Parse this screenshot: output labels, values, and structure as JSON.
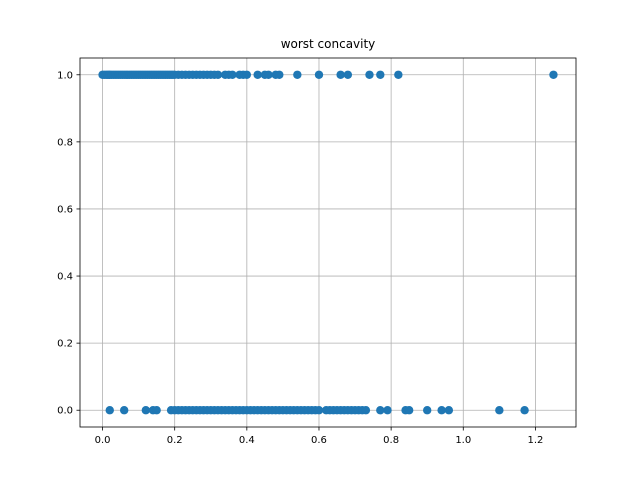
{
  "chart_data": {
    "type": "scatter",
    "title": "worst concavity",
    "xlabel": "",
    "ylabel": "",
    "xlim": [
      -0.0625,
      1.3125
    ],
    "ylim": [
      -0.05,
      1.05
    ],
    "xticks": [
      0.0,
      0.2,
      0.4,
      0.6,
      0.8,
      1.0,
      1.2
    ],
    "xtick_labels": [
      "0.0",
      "0.2",
      "0.4",
      "0.6",
      "0.8",
      "1.0",
      "1.2"
    ],
    "yticks": [
      0.0,
      0.2,
      0.4,
      0.6,
      0.8,
      1.0
    ],
    "ytick_labels": [
      "0.0",
      "0.2",
      "0.4",
      "0.6",
      "0.8",
      "1.0"
    ],
    "grid": true,
    "marker_color": "#1f77b4",
    "series": [
      {
        "x": [
          0.0,
          0.005,
          0.01,
          0.014,
          0.018,
          0.02,
          0.025,
          0.03,
          0.035,
          0.04,
          0.045,
          0.05,
          0.055,
          0.06,
          0.065,
          0.07,
          0.075,
          0.08,
          0.085,
          0.09,
          0.095,
          0.1,
          0.105,
          0.11,
          0.115,
          0.12,
          0.125,
          0.13,
          0.135,
          0.14,
          0.145,
          0.15,
          0.155,
          0.16,
          0.165,
          0.17,
          0.175,
          0.18,
          0.185,
          0.19,
          0.195,
          0.2,
          0.21,
          0.22,
          0.23,
          0.24,
          0.25,
          0.26,
          0.27,
          0.28,
          0.29,
          0.3,
          0.31,
          0.32,
          0.34,
          0.35,
          0.36,
          0.38,
          0.39,
          0.4,
          0.43,
          0.45,
          0.46,
          0.48,
          0.49,
          0.54,
          0.6,
          0.66,
          0.68,
          0.74,
          0.77,
          0.82,
          1.25
        ],
        "y": [
          1,
          1,
          1,
          1,
          1,
          1,
          1,
          1,
          1,
          1,
          1,
          1,
          1,
          1,
          1,
          1,
          1,
          1,
          1,
          1,
          1,
          1,
          1,
          1,
          1,
          1,
          1,
          1,
          1,
          1,
          1,
          1,
          1,
          1,
          1,
          1,
          1,
          1,
          1,
          1,
          1,
          1,
          1,
          1,
          1,
          1,
          1,
          1,
          1,
          1,
          1,
          1,
          1,
          1,
          1,
          1,
          1,
          1,
          1,
          1,
          1,
          1,
          1,
          1,
          1,
          1,
          1,
          1,
          1,
          1,
          1,
          1,
          1
        ]
      },
      {
        "x": [
          0.02,
          0.06,
          0.12,
          0.14,
          0.15,
          0.19,
          0.2,
          0.21,
          0.22,
          0.23,
          0.24,
          0.25,
          0.26,
          0.27,
          0.28,
          0.29,
          0.3,
          0.31,
          0.32,
          0.33,
          0.34,
          0.35,
          0.36,
          0.37,
          0.38,
          0.39,
          0.4,
          0.41,
          0.42,
          0.43,
          0.44,
          0.45,
          0.46,
          0.47,
          0.48,
          0.49,
          0.5,
          0.51,
          0.52,
          0.53,
          0.54,
          0.55,
          0.56,
          0.57,
          0.58,
          0.59,
          0.6,
          0.62,
          0.63,
          0.64,
          0.65,
          0.66,
          0.67,
          0.68,
          0.69,
          0.7,
          0.71,
          0.72,
          0.73,
          0.77,
          0.79,
          0.84,
          0.85,
          0.9,
          0.94,
          0.96,
          1.1,
          1.17
        ],
        "y": [
          0,
          0,
          0,
          0,
          0,
          0,
          0,
          0,
          0,
          0,
          0,
          0,
          0,
          0,
          0,
          0,
          0,
          0,
          0,
          0,
          0,
          0,
          0,
          0,
          0,
          0,
          0,
          0,
          0,
          0,
          0,
          0,
          0,
          0,
          0,
          0,
          0,
          0,
          0,
          0,
          0,
          0,
          0,
          0,
          0,
          0,
          0,
          0,
          0,
          0,
          0,
          0,
          0,
          0,
          0,
          0,
          0,
          0,
          0,
          0,
          0,
          0,
          0,
          0,
          0,
          0,
          0,
          0
        ]
      }
    ]
  }
}
